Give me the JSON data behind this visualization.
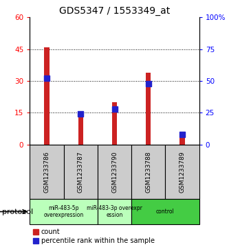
{
  "title": "GDS5347 / 1553349_at",
  "samples": [
    "GSM1233786",
    "GSM1233787",
    "GSM1233790",
    "GSM1233788",
    "GSM1233789"
  ],
  "count_values": [
    46,
    13,
    20,
    34,
    4
  ],
  "percentile_values": [
    52,
    24,
    28,
    48,
    8
  ],
  "left_ylim": [
    0,
    60
  ],
  "right_ylim": [
    0,
    100
  ],
  "left_yticks": [
    0,
    15,
    30,
    45,
    60
  ],
  "right_yticks": [
    0,
    25,
    50,
    75,
    100
  ],
  "right_yticklabels": [
    "0",
    "25",
    "50",
    "75",
    "100%"
  ],
  "bar_color_red": "#cc2222",
  "bar_color_blue": "#2222cc",
  "grid_color": "black",
  "protocol_groups": [
    {
      "label": "miR-483-5p\noverexpression",
      "indices": [
        0,
        1
      ],
      "color": "#bbffbb"
    },
    {
      "label": "miR-483-3p overexpr\nession",
      "indices": [
        2
      ],
      "color": "#bbffbb"
    },
    {
      "label": "control",
      "indices": [
        3,
        4
      ],
      "color": "#44cc44"
    }
  ],
  "legend_count_label": "count",
  "legend_percentile_label": "percentile rank within the sample",
  "protocol_label": "protocol",
  "sample_box_color": "#cccccc",
  "red_bar_width": 0.15,
  "blue_marker_size": 6
}
